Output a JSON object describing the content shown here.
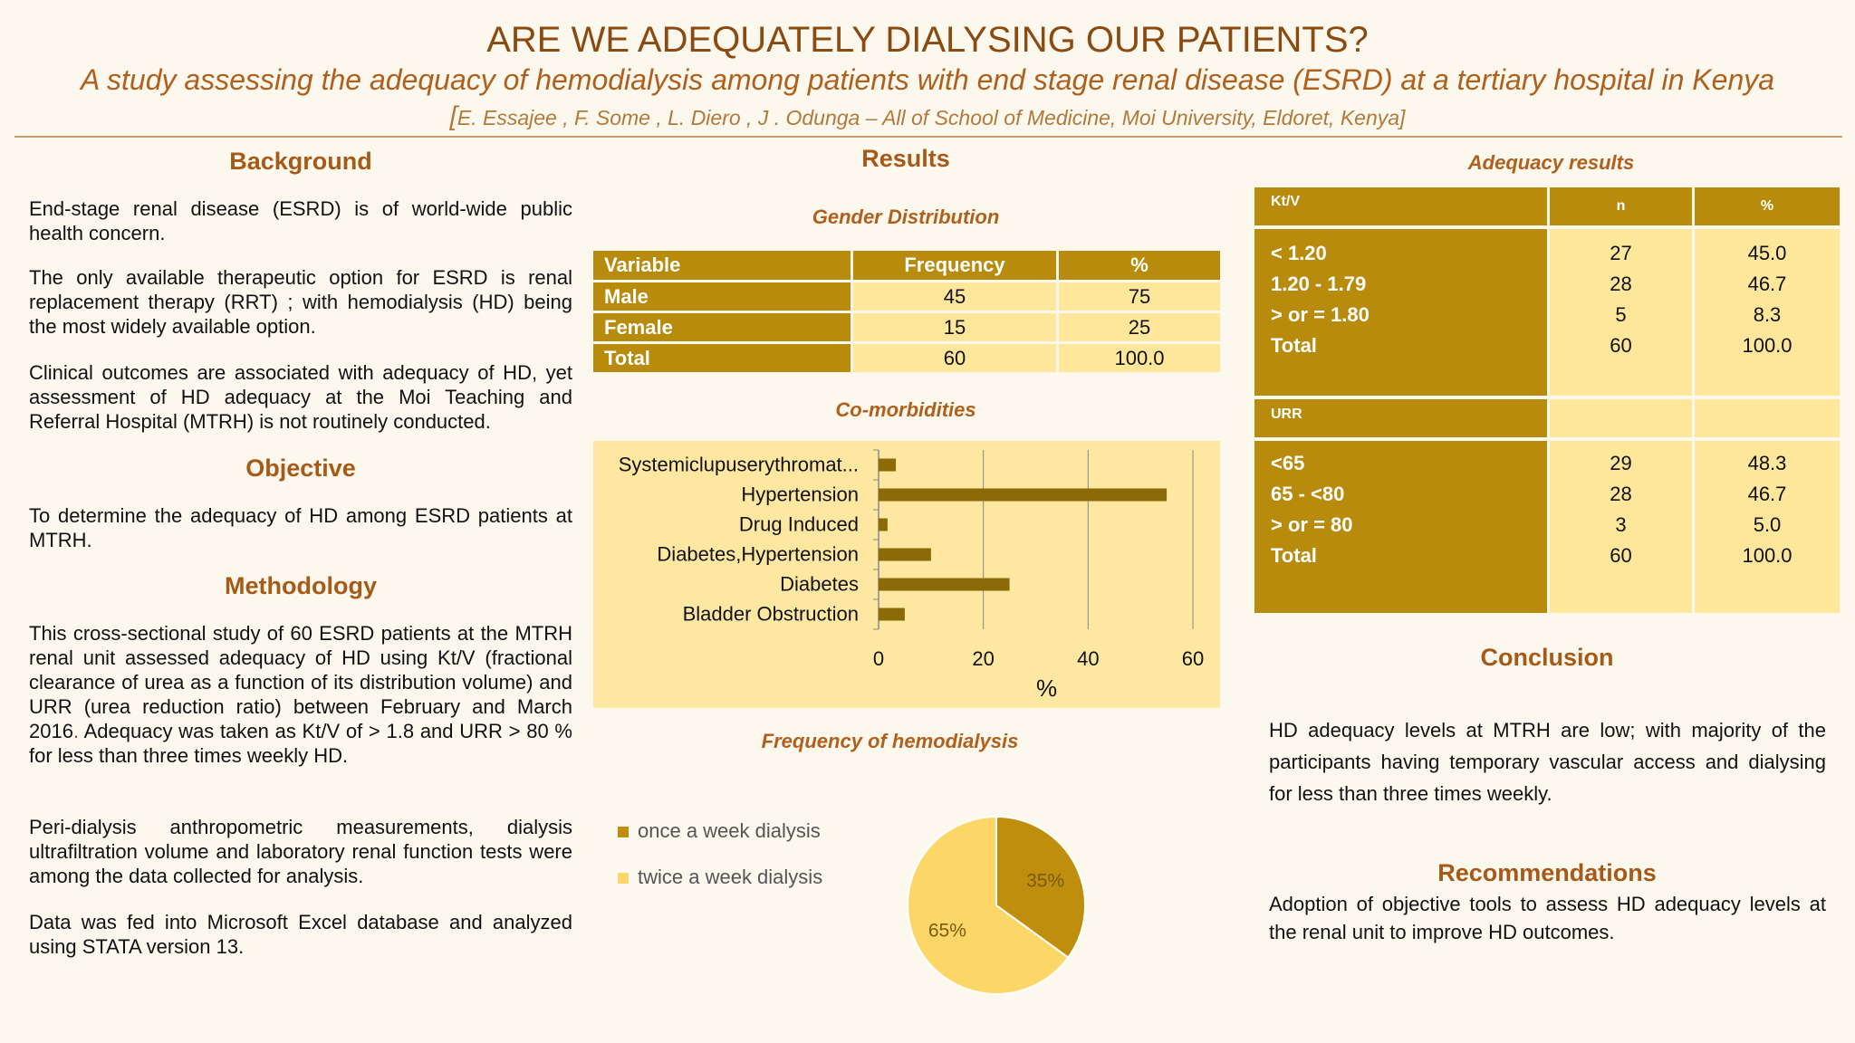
{
  "header": {
    "title": "ARE WE ADEQUATELY DIALYSING OUR PATIENTS?",
    "subtitle": "A study assessing the adequacy of hemodialysis among patients with end stage renal disease (ESRD) at a tertiary hospital in Kenya",
    "authors_bracket": "[",
    "authors": "E. Essajee , F. Some , L. Diero , J . Odunga – All of School of Medicine, Moi University, Eldoret, Kenya]"
  },
  "background": {
    "heading": "Background",
    "paragraphs": [
      "End-stage renal disease (ESRD) is of world-wide public health concern.",
      "The only available therapeutic option for ESRD is renal replacement therapy (RRT) ; with hemodialysis (HD) being the most widely available option.",
      "Clinical outcomes are associated with adequacy of HD, yet assessment of HD adequacy at the Moi Teaching and Referral Hospital (MTRH) is not routinely conducted."
    ]
  },
  "objective": {
    "heading": "Objective",
    "text": "To determine the adequacy of HD among ESRD patients at MTRH."
  },
  "methodology": {
    "heading": "Methodology",
    "p1_a": "This cross-sectional study of 60 ESRD patients at the MTRH renal unit assessed adequacy of HD using Kt/V (fractional clearance of urea as a function of its distribution volume) and URR (urea reduction ratio) between February and March 2016",
    "p1_dot": ".",
    "p1_b": " Adequacy was taken as  Kt/V of > 1.8 and URR  > 80 %  for less than three times weekly HD.",
    "p2": "Peri-dialysis anthropometric measurements, dialysis ultrafiltration volume and laboratory renal function tests were among the data collected for analysis.",
    "p3": "Data was fed into Microsoft Excel database and analyzed using STATA version 13."
  },
  "results": {
    "heading": "Results",
    "gender": {
      "title": "Gender Distribution",
      "headers": [
        "Variable",
        "Frequency",
        "%"
      ],
      "rows": [
        {
          "label": "Male",
          "freq": "45",
          "pct": "75"
        },
        {
          "label": "Female",
          "freq": "15",
          "pct": "25"
        },
        {
          "label": "Total",
          "freq": "60",
          "pct": "100.0"
        }
      ]
    },
    "comorbidities_title": "Co-morbidities",
    "frequency_title": "Frequency of hemodialysis"
  },
  "chart_data": [
    {
      "type": "bar",
      "orientation": "horizontal",
      "title": "Co-morbidities",
      "categories": [
        "Systemiclupuserythromat...",
        "Hypertension",
        "Drug Induced",
        "Diabetes,Hypertension",
        "Diabetes",
        "Bladder Obstruction"
      ],
      "values": [
        3.3,
        55,
        1.7,
        10,
        25,
        5
      ],
      "xlabel": "%",
      "ylabel": "",
      "xlim": [
        0,
        60
      ],
      "xticks": [
        "0",
        "20",
        "40",
        "60"
      ],
      "grid": true,
      "colors": {
        "bar": "#8b6b07",
        "background": "#fee7a0",
        "grid": "#888888"
      }
    },
    {
      "type": "pie",
      "title": "Frequency of hemodialysis",
      "labels": [
        "once a week dialysis",
        "twice a week dialysis"
      ],
      "values": [
        35,
        65
      ],
      "slice_labels": [
        "35%",
        "65%"
      ],
      "legend": "left",
      "colors": [
        "#bf8e0c",
        "#fcd767"
      ]
    }
  ],
  "adequacy": {
    "title": "Adequacy results",
    "headers": [
      "Kt/V",
      "n",
      "%"
    ],
    "ktv_rows": [
      {
        "label": "< 1.20",
        "n": "27",
        "pct": "45.0"
      },
      {
        "label": "1.20 - 1.79",
        "n": "28",
        "pct": "46.7"
      },
      {
        "label": "> or = 1.80",
        "n": "5",
        "pct": "8.3"
      },
      {
        "label": "Total",
        "n": "60",
        "pct": "100.0"
      }
    ],
    "urr_label": "URR",
    "urr_rows": [
      {
        "label": "<65",
        "n": "29",
        "pct": "48.3"
      },
      {
        "label": "65 - <80",
        "n": "28",
        "pct": "46.7"
      },
      {
        "label": "> or = 80",
        "n": "3",
        "pct": "5.0"
      },
      {
        "label": "Total",
        "n": "60",
        "pct": "100.0"
      }
    ]
  },
  "conclusion": {
    "heading": "Conclusion",
    "text": "HD adequacy levels at MTRH are low; with majority of the participants having temporary vascular access and dialysing for less than three times weekly."
  },
  "recommendations": {
    "heading": "Recommendations",
    "text": "Adoption of objective tools to assess HD adequacy levels at the renal unit to improve HD outcomes."
  }
}
